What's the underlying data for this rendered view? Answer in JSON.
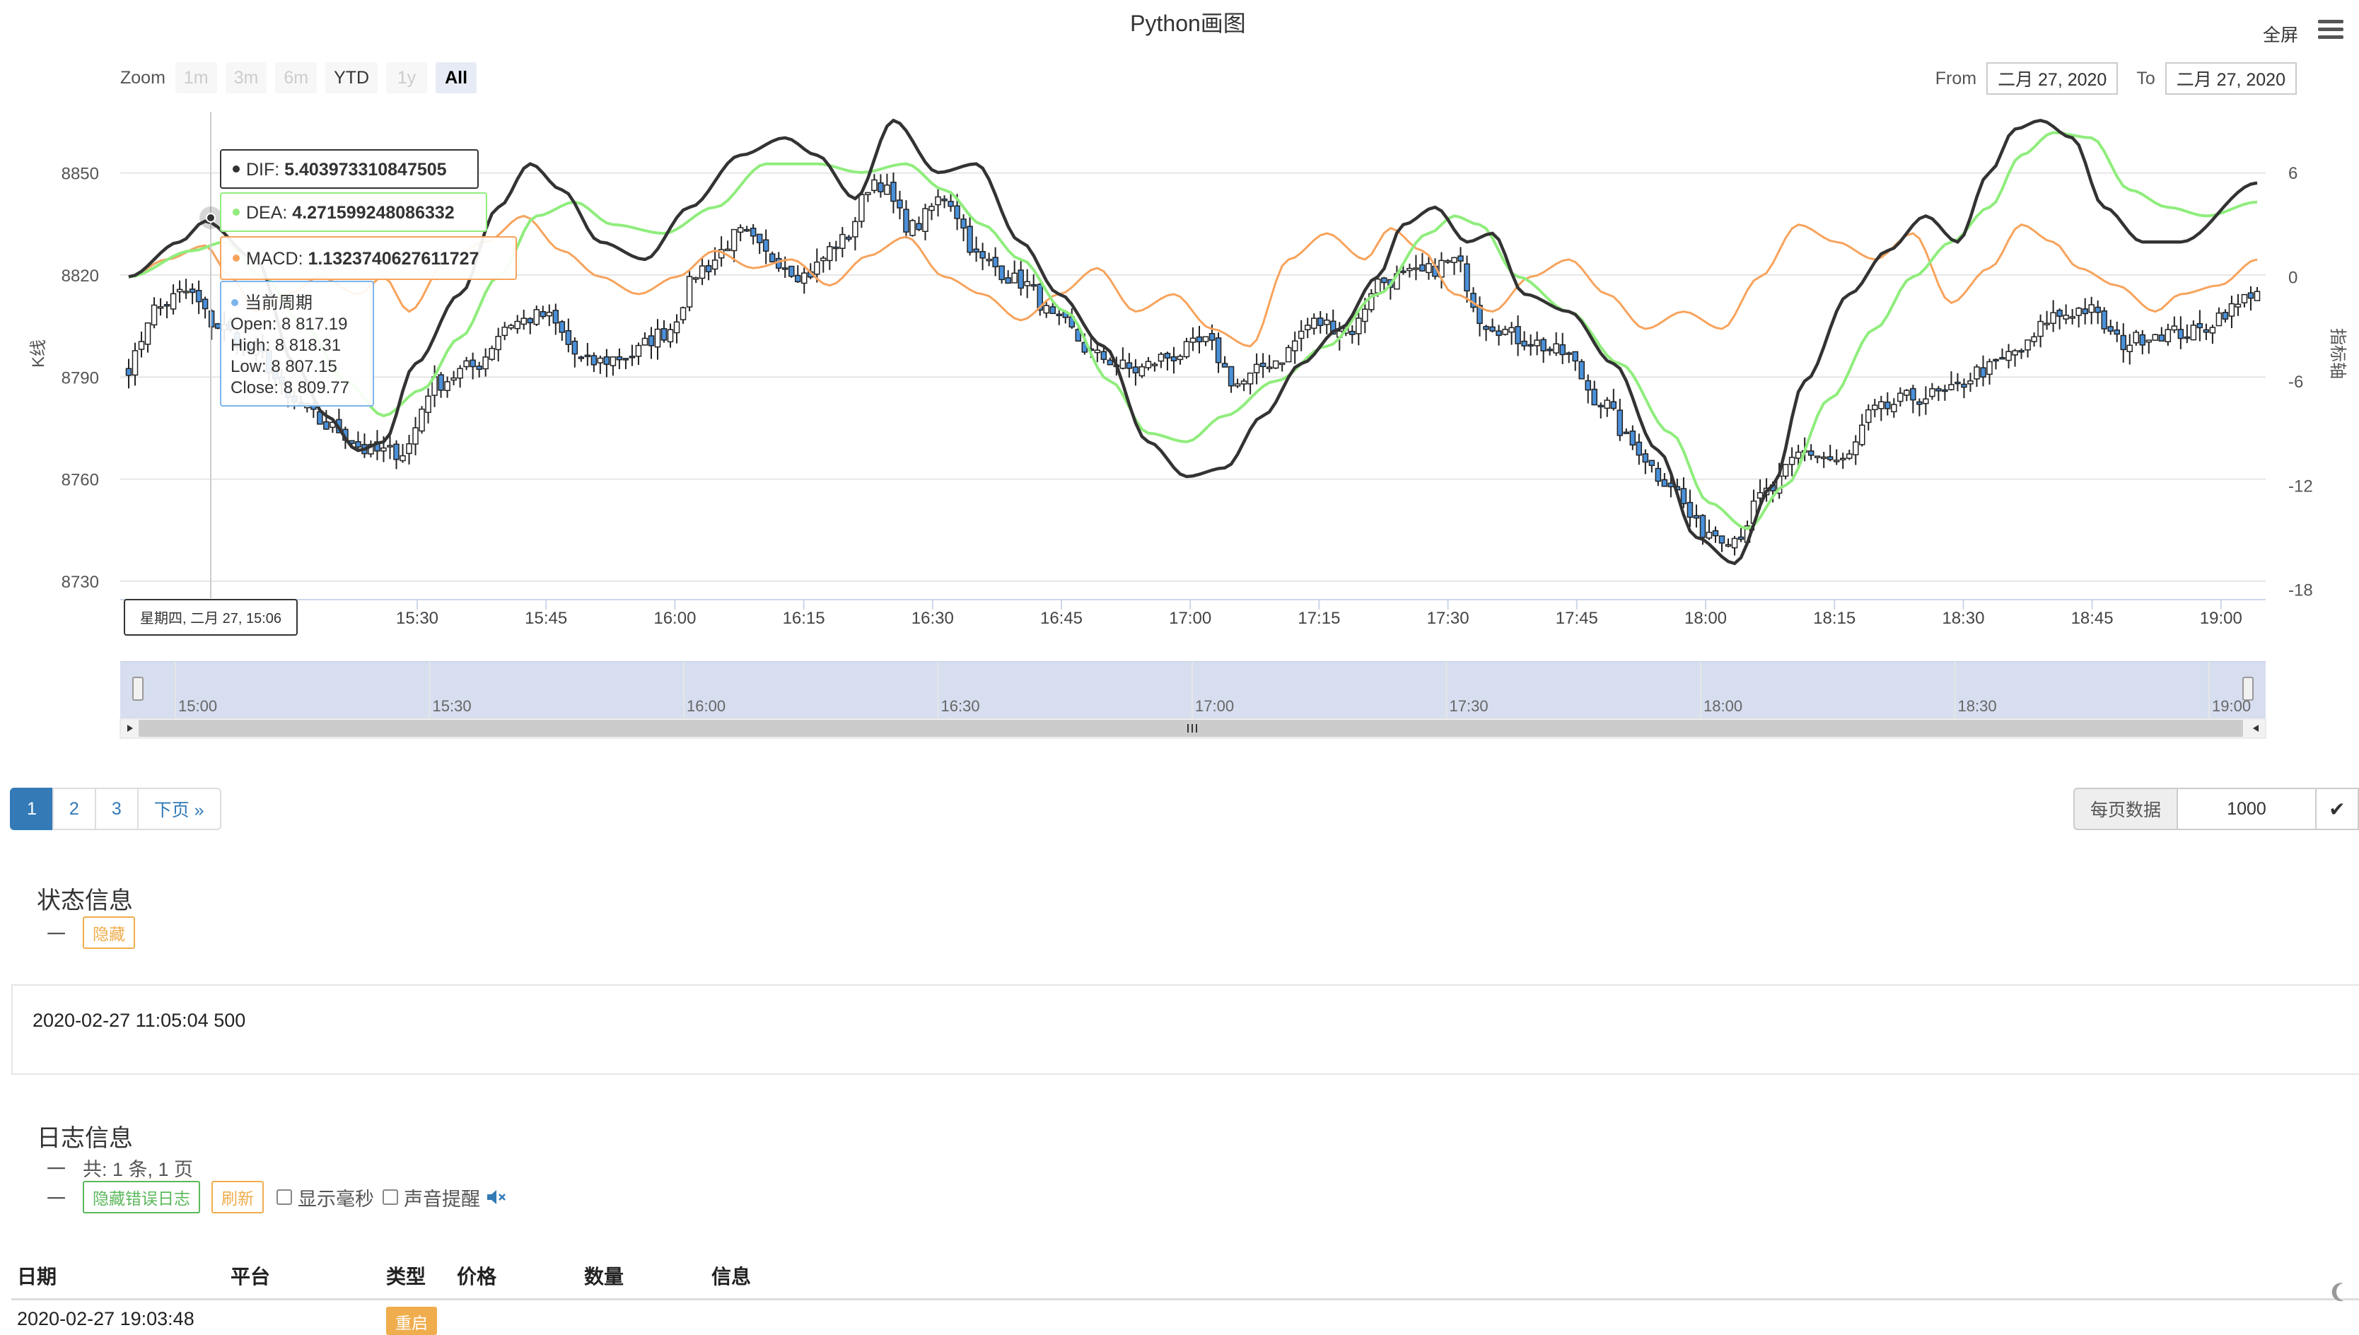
{
  "chart": {
    "title": "Python画图",
    "fullscreen_label": "全屏",
    "zoom_label": "Zoom",
    "zoom_buttons": [
      {
        "label": "1m",
        "state": "disabled"
      },
      {
        "label": "3m",
        "state": "disabled"
      },
      {
        "label": "6m",
        "state": "disabled"
      },
      {
        "label": "YTD",
        "state": "enabled"
      },
      {
        "label": "1y",
        "state": "disabled"
      },
      {
        "label": "All",
        "state": "active"
      }
    ],
    "from_label": "From",
    "from_value": "二月 27, 2020",
    "to_label": "To",
    "to_value": "二月 27, 2020",
    "left_axis_title": "K线",
    "right_axis_title": "指标轴",
    "tooltip": {
      "dif": "DIF: 5.403973310847505",
      "dea": "DEA: 4.271599248086332",
      "macd": "MACD: 1.1323740627611727",
      "period_title": "当前周期",
      "open": "Open: 8 817.19",
      "high": "High: 8 818.31",
      "low": "Low: 8 807.15",
      "close": "Close: 8 809.77",
      "x_label": "星期四, 二月 27, 15:06"
    },
    "colors": {
      "dif": "#333333",
      "dea": "#90ed7d",
      "macd": "#f7a35c",
      "up": "#ffffff",
      "down": "#4a90d9",
      "nav": "#ccd6eb"
    }
  },
  "chart_data": {
    "type": "candlestick",
    "x_ticks": [
      "15:30",
      "15:45",
      "16:00",
      "16:15",
      "16:30",
      "16:45",
      "17:00",
      "17:15",
      "17:30",
      "17:45",
      "18:00",
      "18:15",
      "18:30",
      "18:45",
      "19:00"
    ],
    "y_left_ticks": [
      8730,
      8760,
      8790,
      8820,
      8850
    ],
    "y_left_range": [
      8725,
      8868
    ],
    "y_right_ticks": [
      -18,
      -12,
      -6,
      0,
      6
    ],
    "y_right_range": [
      -18.5,
      9.5
    ],
    "navigator_ticks": [
      "15:00",
      "15:30",
      "16:00",
      "16:30",
      "17:00",
      "17:30",
      "18:00",
      "18:30",
      "19:00"
    ],
    "close_anchors": [
      [
        0,
        8793
      ],
      [
        4,
        8810
      ],
      [
        9,
        8815
      ],
      [
        14,
        8805
      ],
      [
        20,
        8797
      ],
      [
        26,
        8782
      ],
      [
        32,
        8775
      ],
      [
        38,
        8768
      ],
      [
        43,
        8768
      ],
      [
        48,
        8788
      ],
      [
        54,
        8793
      ],
      [
        60,
        8806
      ],
      [
        65,
        8808
      ],
      [
        72,
        8794
      ],
      [
        78,
        8796
      ],
      [
        84,
        8803
      ],
      [
        90,
        8822
      ],
      [
        96,
        8832
      ],
      [
        101,
        8825
      ],
      [
        106,
        8820
      ],
      [
        112,
        8830
      ],
      [
        117,
        8848
      ],
      [
        123,
        8834
      ],
      [
        128,
        8843
      ],
      [
        134,
        8824
      ],
      [
        140,
        8818
      ],
      [
        146,
        8806
      ],
      [
        152,
        8796
      ],
      [
        158,
        8792
      ],
      [
        163,
        8796
      ],
      [
        169,
        8800
      ],
      [
        174,
        8788
      ],
      [
        180,
        8795
      ],
      [
        186,
        8806
      ],
      [
        192,
        8804
      ],
      [
        196,
        8818
      ],
      [
        202,
        8820
      ],
      [
        208,
        8824
      ],
      [
        213,
        8806
      ],
      [
        219,
        8801
      ],
      [
        225,
        8797
      ],
      [
        231,
        8783
      ],
      [
        236,
        8770
      ],
      [
        241,
        8760
      ],
      [
        247,
        8745
      ],
      [
        252,
        8743
      ],
      [
        257,
        8756
      ],
      [
        263,
        8768
      ],
      [
        269,
        8765
      ],
      [
        274,
        8780
      ],
      [
        280,
        8784
      ],
      [
        285,
        8785
      ],
      [
        291,
        8792
      ],
      [
        297,
        8798
      ],
      [
        302,
        8808
      ],
      [
        307,
        8810
      ],
      [
        313,
        8800
      ],
      [
        318,
        8803
      ],
      [
        324,
        8803
      ],
      [
        330,
        8810
      ],
      [
        334,
        8816
      ]
    ],
    "dif_anchors": [
      [
        0,
        0
      ],
      [
        8,
        2
      ],
      [
        12,
        3.2
      ],
      [
        20,
        1
      ],
      [
        26,
        -5
      ],
      [
        31,
        -8
      ],
      [
        36,
        -10
      ],
      [
        40,
        -9.5
      ],
      [
        45,
        -5
      ],
      [
        52,
        -1
      ],
      [
        58,
        4
      ],
      [
        63,
        6.5
      ],
      [
        68,
        5
      ],
      [
        74,
        2
      ],
      [
        81,
        1
      ],
      [
        88,
        4
      ],
      [
        96,
        7
      ],
      [
        103,
        8
      ],
      [
        108,
        7
      ],
      [
        114,
        4.5
      ],
      [
        120,
        9
      ],
      [
        127,
        6
      ],
      [
        133,
        6.5
      ],
      [
        140,
        2
      ],
      [
        146,
        -1
      ],
      [
        153,
        -4
      ],
      [
        160,
        -9.5
      ],
      [
        166,
        -11.5
      ],
      [
        172,
        -11
      ],
      [
        178,
        -8
      ],
      [
        184,
        -5
      ],
      [
        190,
        -3
      ],
      [
        196,
        0
      ],
      [
        200,
        3
      ],
      [
        205,
        4
      ],
      [
        210,
        2
      ],
      [
        214,
        2.5
      ],
      [
        219,
        -1
      ],
      [
        226,
        -2
      ],
      [
        233,
        -5
      ],
      [
        240,
        -10
      ],
      [
        246,
        -15
      ],
      [
        252,
        -16.5
      ],
      [
        258,
        -12
      ],
      [
        263,
        -6
      ],
      [
        270,
        -1
      ],
      [
        276,
        1.5
      ],
      [
        282,
        3.5
      ],
      [
        287,
        2
      ],
      [
        292,
        6
      ],
      [
        296,
        8.5
      ],
      [
        300,
        9
      ],
      [
        305,
        8
      ],
      [
        310,
        4
      ],
      [
        316,
        2
      ],
      [
        322,
        2
      ],
      [
        334,
        5.4
      ]
    ],
    "dea_anchors": [
      [
        0,
        0
      ],
      [
        10,
        1.5
      ],
      [
        15,
        2
      ],
      [
        21,
        0
      ],
      [
        28,
        -3
      ],
      [
        34,
        -6
      ],
      [
        40,
        -8
      ],
      [
        46,
        -6.5
      ],
      [
        52,
        -3.5
      ],
      [
        58,
        0
      ],
      [
        64,
        3.5
      ],
      [
        70,
        4.3
      ],
      [
        76,
        3
      ],
      [
        84,
        2.5
      ],
      [
        92,
        4
      ],
      [
        100,
        6.5
      ],
      [
        108,
        6.5
      ],
      [
        115,
        6
      ],
      [
        122,
        6.5
      ],
      [
        128,
        5
      ],
      [
        134,
        3
      ],
      [
        140,
        1
      ],
      [
        147,
        -2
      ],
      [
        154,
        -6
      ],
      [
        160,
        -9
      ],
      [
        166,
        -9.5
      ],
      [
        172,
        -8
      ],
      [
        180,
        -6
      ],
      [
        188,
        -4
      ],
      [
        196,
        -1
      ],
      [
        204,
        2.5
      ],
      [
        208,
        3.5
      ],
      [
        212,
        3
      ],
      [
        218,
        0
      ],
      [
        226,
        -2
      ],
      [
        234,
        -5
      ],
      [
        242,
        -9
      ],
      [
        248,
        -13
      ],
      [
        254,
        -14.5
      ],
      [
        260,
        -12
      ],
      [
        267,
        -7
      ],
      [
        274,
        -3
      ],
      [
        280,
        0
      ],
      [
        286,
        2
      ],
      [
        292,
        4
      ],
      [
        297,
        7
      ],
      [
        302,
        8.3
      ],
      [
        308,
        8
      ],
      [
        314,
        5
      ],
      [
        320,
        4
      ],
      [
        326,
        3.5
      ],
      [
        334,
        4.3
      ]
    ],
    "macd_anchors": [
      [
        0,
        0
      ],
      [
        6,
        1
      ],
      [
        12,
        1.8
      ],
      [
        16,
        0
      ],
      [
        20,
        -2
      ],
      [
        25,
        -1
      ],
      [
        30,
        0
      ],
      [
        36,
        -1
      ],
      [
        40,
        0
      ],
      [
        44,
        -2
      ],
      [
        50,
        1
      ],
      [
        56,
        2
      ],
      [
        62,
        3.5
      ],
      [
        68,
        1.5
      ],
      [
        74,
        0
      ],
      [
        80,
        -1
      ],
      [
        86,
        0
      ],
      [
        92,
        1.5
      ],
      [
        98,
        0.5
      ],
      [
        104,
        1
      ],
      [
        110,
        -0.5
      ],
      [
        116,
        1.2
      ],
      [
        122,
        2.3
      ],
      [
        128,
        0
      ],
      [
        134,
        -1
      ],
      [
        140,
        -2.5
      ],
      [
        146,
        -1
      ],
      [
        152,
        0.5
      ],
      [
        158,
        -2
      ],
      [
        164,
        -1
      ],
      [
        170,
        -3
      ],
      [
        176,
        -4
      ],
      [
        182,
        1
      ],
      [
        188,
        2.5
      ],
      [
        194,
        1
      ],
      [
        198,
        2.8
      ],
      [
        203,
        1.5
      ],
      [
        208,
        -1
      ],
      [
        214,
        -2
      ],
      [
        220,
        0
      ],
      [
        226,
        1
      ],
      [
        232,
        -1
      ],
      [
        238,
        -3
      ],
      [
        244,
        -2
      ],
      [
        250,
        -3
      ],
      [
        256,
        0
      ],
      [
        262,
        3
      ],
      [
        268,
        2
      ],
      [
        274,
        1
      ],
      [
        280,
        2.5
      ],
      [
        286,
        -1.5
      ],
      [
        292,
        0.5
      ],
      [
        297,
        3
      ],
      [
        302,
        2
      ],
      [
        306,
        0.5
      ],
      [
        312,
        -0.5
      ],
      [
        318,
        -2
      ],
      [
        322,
        -1
      ],
      [
        328,
        -0.5
      ],
      [
        334,
        1
      ]
    ]
  },
  "pagination": {
    "pages": [
      "1",
      "2",
      "3"
    ],
    "next": "下页 »",
    "per_page_label": "每页数据",
    "per_page_value": "1000"
  },
  "status": {
    "title": "状态信息",
    "dash": "一",
    "hide_label": "隐藏",
    "text": "2020-02-27 11:05:04 500"
  },
  "log": {
    "title": "日志信息",
    "dash": "一",
    "summary": "共: 1 条, 1 页",
    "hide_error_label": "隐藏错误日志",
    "refresh_label": "刷新",
    "show_ms_label": "显示毫秒",
    "sound_label": "声音提醒",
    "sound_icon": "speaker-mute-icon",
    "headers": [
      "日期",
      "平台",
      "类型",
      "价格",
      "数量",
      "信息"
    ],
    "rows": [
      {
        "date": "2020-02-27 19:03:48",
        "type": "重启"
      }
    ]
  }
}
